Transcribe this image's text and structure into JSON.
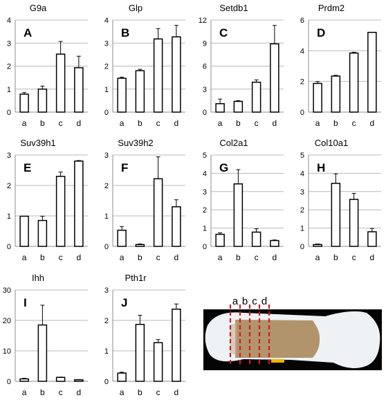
{
  "chart_data": [
    {
      "type": "bar",
      "title": "G9a",
      "letter": "A",
      "categories": [
        "a",
        "b",
        "c",
        "d"
      ],
      "values": [
        0.78,
        1.0,
        2.52,
        1.93
      ],
      "errors": [
        0.07,
        0.13,
        0.55,
        0.5
      ],
      "ylim": [
        0,
        4
      ],
      "yticks": [
        0,
        1,
        2,
        3,
        4
      ],
      "grid": true
    },
    {
      "type": "bar",
      "title": "Glp",
      "letter": "B",
      "categories": [
        "a",
        "b",
        "c",
        "d"
      ],
      "values": [
        1.47,
        1.8,
        3.18,
        3.27
      ],
      "errors": [
        0.05,
        0.06,
        0.45,
        0.5
      ],
      "ylim": [
        0,
        4
      ],
      "yticks": [
        0,
        1,
        2,
        3,
        4
      ],
      "grid": true
    },
    {
      "type": "bar",
      "title": "Setdb1",
      "letter": "C",
      "categories": [
        "a",
        "b",
        "c",
        "d"
      ],
      "values": [
        1.1,
        1.4,
        3.9,
        8.9
      ],
      "errors": [
        0.6,
        0.1,
        0.3,
        2.4
      ],
      "ylim": [
        0,
        12
      ],
      "yticks": [
        0,
        3,
        6,
        9,
        12
      ],
      "grid": true
    },
    {
      "type": "bar",
      "title": "Prdm2",
      "letter": "D",
      "categories": [
        "a",
        "b",
        "c",
        "d"
      ],
      "values": [
        1.87,
        2.35,
        3.85,
        5.2
      ],
      "errors": [
        0.12,
        0.05,
        0.05,
        0.0
      ],
      "ylim": [
        0,
        6
      ],
      "yticks": [
        0,
        2,
        4,
        6
      ],
      "grid": true
    },
    {
      "type": "bar",
      "title": "Suv39h1",
      "letter": "E",
      "categories": [
        "a",
        "b",
        "c",
        "d"
      ],
      "values": [
        0.99,
        0.85,
        2.3,
        2.8
      ],
      "errors": [
        0.0,
        0.14,
        0.14,
        0.02
      ],
      "ylim": [
        0,
        3
      ],
      "yticks": [
        0,
        1,
        2,
        3
      ],
      "grid": true
    },
    {
      "type": "bar",
      "title": "Suv39h2",
      "letter": "F",
      "categories": [
        "a",
        "b",
        "c",
        "d"
      ],
      "values": [
        0.53,
        0.06,
        2.22,
        1.3
      ],
      "errors": [
        0.12,
        0.02,
        0.72,
        0.23
      ],
      "ylim": [
        0,
        3
      ],
      "yticks": [
        0,
        1,
        2,
        3
      ],
      "grid": true
    },
    {
      "type": "bar",
      "title": "Col2a1",
      "letter": "G",
      "categories": [
        "a",
        "b",
        "c",
        "d"
      ],
      "values": [
        0.66,
        3.42,
        0.78,
        0.32
      ],
      "errors": [
        0.08,
        0.78,
        0.18,
        0.03
      ],
      "ylim": [
        0,
        5
      ],
      "yticks": [
        0,
        1,
        2,
        3,
        4,
        5
      ],
      "grid": true
    },
    {
      "type": "bar",
      "title": "Col10a1",
      "letter": "H",
      "categories": [
        "a",
        "b",
        "c",
        "d"
      ],
      "values": [
        0.1,
        3.45,
        2.57,
        0.8
      ],
      "errors": [
        0.03,
        0.52,
        0.33,
        0.18
      ],
      "ylim": [
        0,
        5
      ],
      "yticks": [
        0,
        1,
        2,
        3,
        4,
        5
      ],
      "grid": true
    },
    {
      "type": "bar",
      "title": "Ihh",
      "letter": "I",
      "categories": [
        "a",
        "b",
        "c",
        "d"
      ],
      "values": [
        0.8,
        18.5,
        1.3,
        0.5
      ],
      "errors": [
        0.2,
        6.5,
        0.1,
        0.1
      ],
      "ylim": [
        0,
        30
      ],
      "yticks": [
        0,
        10,
        20,
        30
      ],
      "grid": true
    },
    {
      "type": "bar",
      "title": "Pth1r",
      "letter": "J",
      "categories": [
        "a",
        "b",
        "c",
        "d"
      ],
      "values": [
        0.27,
        1.87,
        1.27,
        2.37
      ],
      "errors": [
        0.03,
        0.3,
        0.1,
        0.17
      ],
      "ylim": [
        0,
        3
      ],
      "yticks": [
        0,
        1,
        2,
        3
      ],
      "grid": true
    }
  ],
  "photo": {
    "zone_labels": [
      "a",
      "b",
      "c",
      "d"
    ],
    "colors": {
      "dashes": "#d11a1a",
      "scale_bar": "#f0b400",
      "background": "#050505",
      "bone": "#b2946c",
      "cartilage": "#eef2f5"
    }
  }
}
